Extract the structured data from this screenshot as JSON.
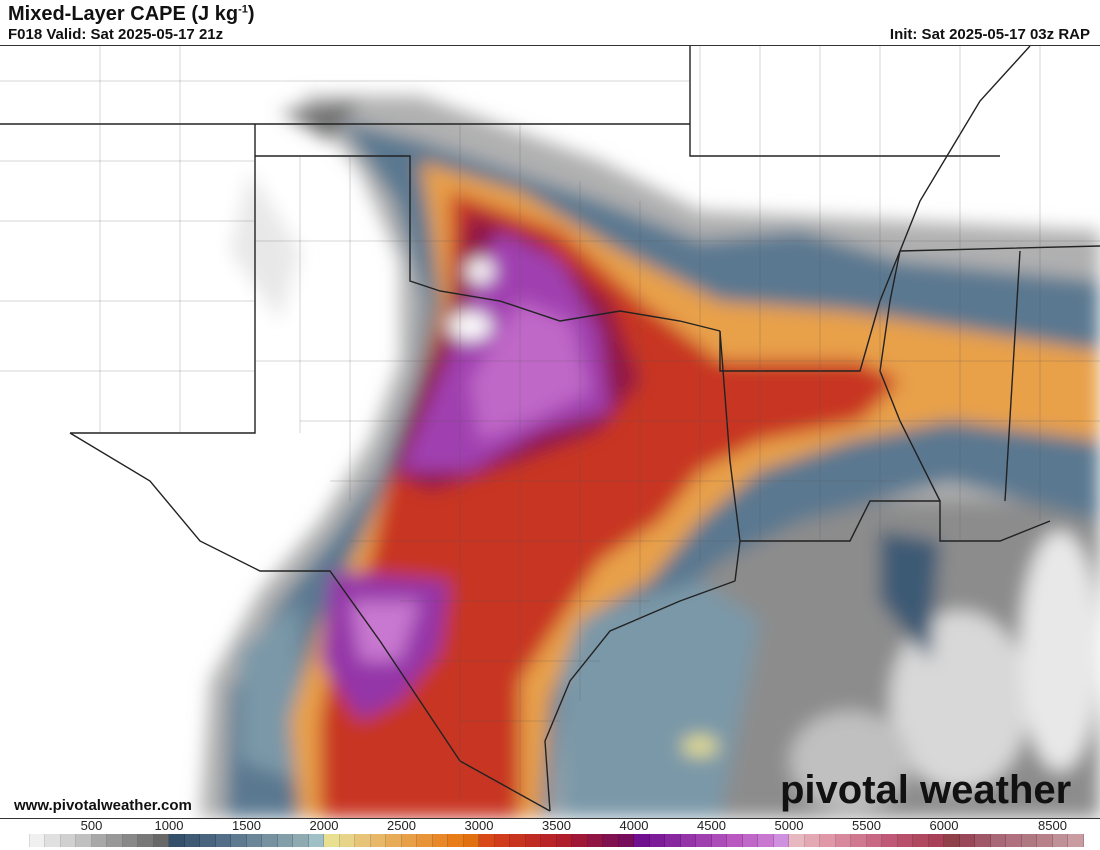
{
  "header": {
    "title": "Mixed-Layer CAPE (J kg",
    "title_sup": "-1",
    "title_end": ")",
    "valid": "F018 Valid: Sat 2025-05-17 21z",
    "init": "Init: Sat 2025-05-17 03z RAP"
  },
  "footer": {
    "site": "www.pivotalweather.com",
    "logo": "pivotal weather"
  },
  "colorbar": {
    "unit": "J kg-1",
    "tick_labels": [
      "500",
      "1000",
      "1500",
      "2000",
      "2500",
      "3000",
      "3500",
      "4000",
      "4500",
      "5000",
      "5500",
      "6000",
      "8500"
    ],
    "colors": [
      "#ffffff",
      "#f0f0f0",
      "#e0e0e0",
      "#d0d0d0",
      "#c0c0c0",
      "#a8a8a8",
      "#989898",
      "#888888",
      "#787878",
      "#686868",
      "#34506a",
      "#3e5a74",
      "#48647e",
      "#526e88",
      "#5e7a90",
      "#6a8698",
      "#7692a0",
      "#829ea8",
      "#90aab2",
      "#a0c0c8",
      "#e8e090",
      "#e8d488",
      "#e8c478",
      "#e8b868",
      "#e8ac58",
      "#e8a048",
      "#e89438",
      "#e88828",
      "#e87c18",
      "#e07010",
      "#d84818",
      "#d03c1c",
      "#c83420",
      "#c02c24",
      "#b82428",
      "#b01e2c",
      "#a01838",
      "#901444",
      "#801050",
      "#780c5c",
      "#701090",
      "#7c1c98",
      "#8828a0",
      "#9434a8",
      "#a040b0",
      "#ac4cb8",
      "#b858c0",
      "#c068c8",
      "#c878d0",
      "#d090e0",
      "#e8b8c0",
      "#e4a8b4",
      "#e098a8",
      "#d8889c",
      "#d07890",
      "#c86884",
      "#c05878",
      "#b8506c",
      "#b04860",
      "#a84058",
      "#904048",
      "#984858",
      "#a05868",
      "#a86878",
      "#b07080",
      "#b07880",
      "#b88088",
      "#c09098",
      "#c89ca0"
    ]
  },
  "map": {
    "region": "Southern Plains / Texas",
    "field": "Mixed-Layer CAPE",
    "model": "RAP"
  }
}
